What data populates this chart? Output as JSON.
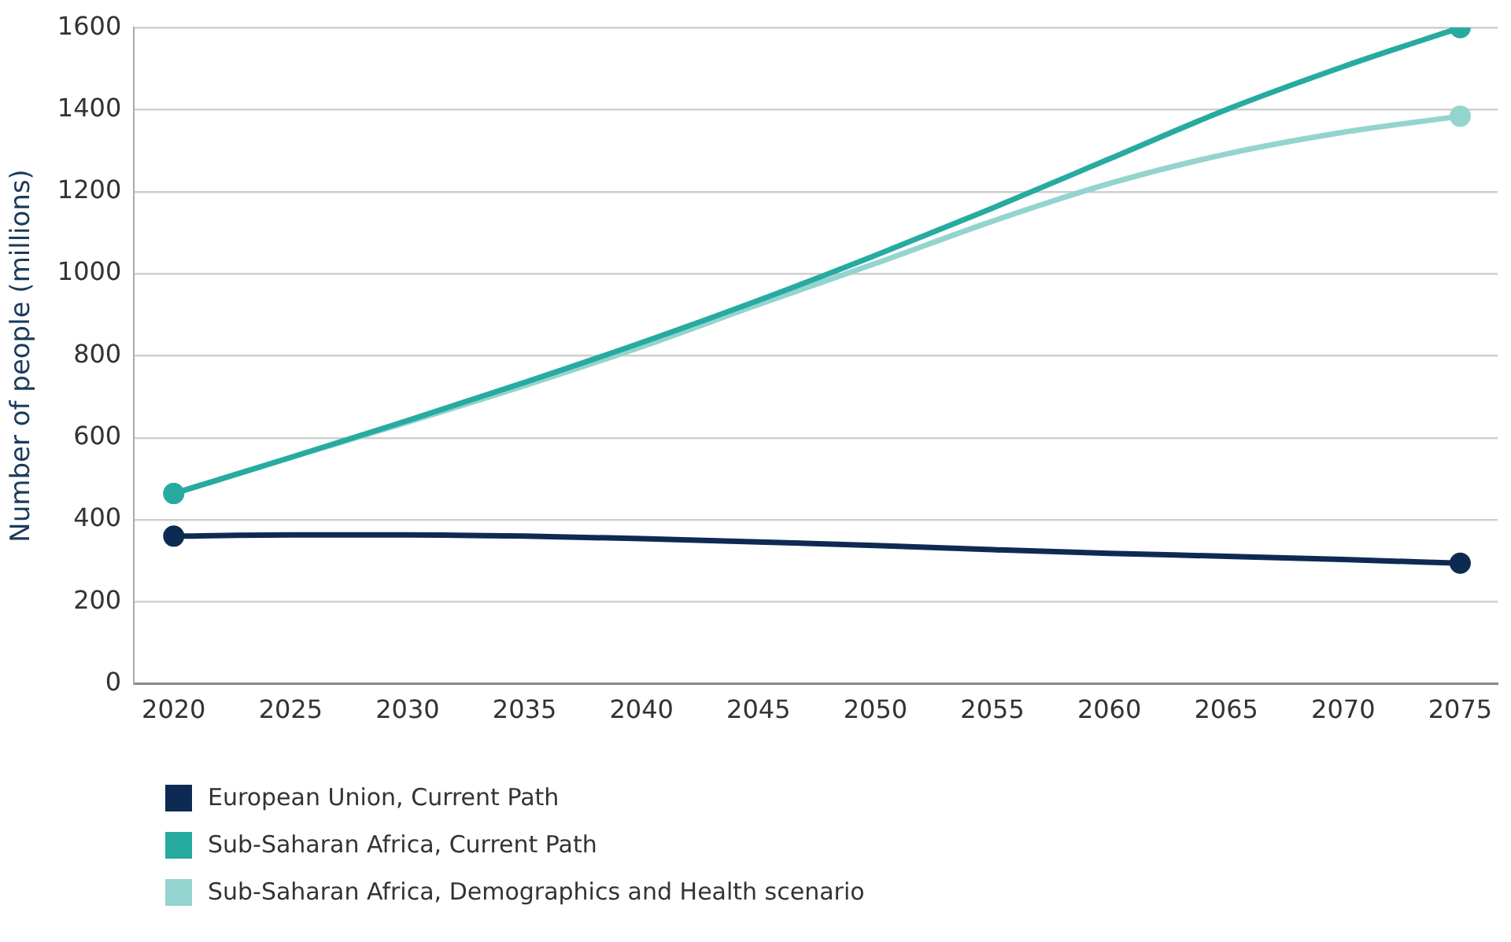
{
  "chart_data": {
    "type": "line",
    "ylabel": "Number of people (millions)",
    "x": [
      2020,
      2025,
      2030,
      2035,
      2040,
      2045,
      2050,
      2055,
      2060,
      2065,
      2070,
      2075
    ],
    "xlim": [
      2018.3,
      2076.6
    ],
    "xticks": [
      2020,
      2025,
      2030,
      2035,
      2040,
      2045,
      2050,
      2055,
      2060,
      2065,
      2070,
      2075
    ],
    "ylim": [
      0,
      1600
    ],
    "yticks": [
      0,
      200,
      400,
      600,
      800,
      1000,
      1200,
      1400,
      1600
    ],
    "grid": "y",
    "legend": "bottom",
    "line_style": "solid",
    "series": [
      {
        "name": "European Union, Current Path",
        "color": "#0d2b52",
        "values": [
          360,
          363,
          363,
          360,
          354,
          346,
          337,
          327,
          318,
          311,
          303,
          294
        ]
      },
      {
        "name": "Sub-Saharan Africa, Current Path",
        "color": "#27aba0",
        "values": [
          464,
          552,
          642,
          735,
          832,
          935,
          1045,
          1160,
          1280,
          1400,
          1505,
          1600
        ]
      },
      {
        "name": "Sub-Saharan Africa, Demographics and Health scenario",
        "color": "#94d4cf",
        "values": [
          464,
          552,
          638,
          727,
          822,
          925,
          1025,
          1128,
          1220,
          1292,
          1345,
          1384
        ]
      }
    ]
  }
}
